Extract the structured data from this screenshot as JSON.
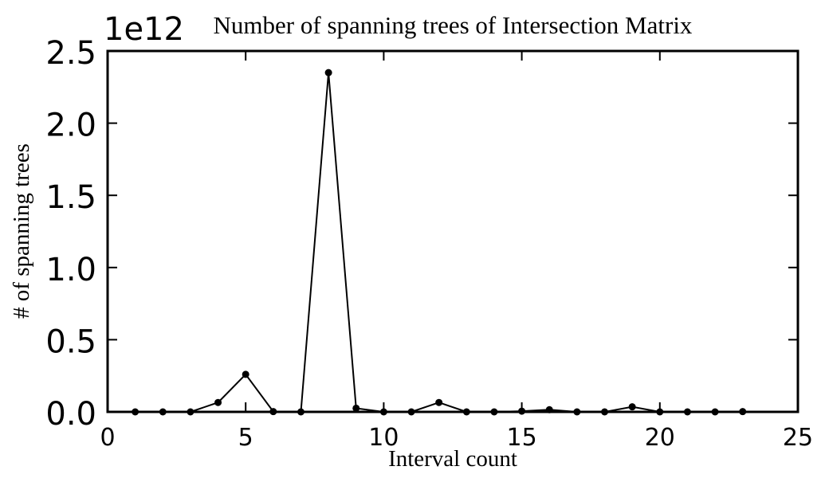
{
  "chart_data": {
    "type": "line",
    "title": "Number of spanning trees of Intersection Matrix",
    "xlabel": "Interval count",
    "ylabel": "# of spanning trees",
    "y_offset_label": "1e12",
    "xlim": [
      0,
      25
    ],
    "ylim": [
      0,
      2.5
    ],
    "x_ticks": [
      0,
      5,
      10,
      15,
      20,
      25
    ],
    "y_ticks": [
      0.0,
      0.5,
      1.0,
      1.5,
      2.0,
      2.5
    ],
    "x_tick_labels": [
      "0",
      "5",
      "10",
      "15",
      "20",
      "25"
    ],
    "y_tick_labels": [
      "0.0",
      "0.5",
      "1.0",
      "1.5",
      "2.0",
      "2.5"
    ],
    "grid": false,
    "legend": "none",
    "line_color": "#000000",
    "series": [
      {
        "x": [
          1,
          2,
          3,
          4,
          5,
          6,
          7,
          8,
          9,
          10,
          11,
          12,
          13,
          14,
          15,
          16,
          17,
          18,
          19,
          20,
          21,
          22,
          23
        ],
        "values": [
          0.0,
          0.0,
          0.0,
          0.065,
          0.26,
          0.002,
          0.0,
          2.35,
          0.025,
          0.0,
          0.0,
          0.065,
          0.0,
          0.0,
          0.005,
          0.015,
          0.0,
          0.0,
          0.035,
          0.0,
          0.0,
          0.0,
          0.002
        ]
      }
    ]
  }
}
